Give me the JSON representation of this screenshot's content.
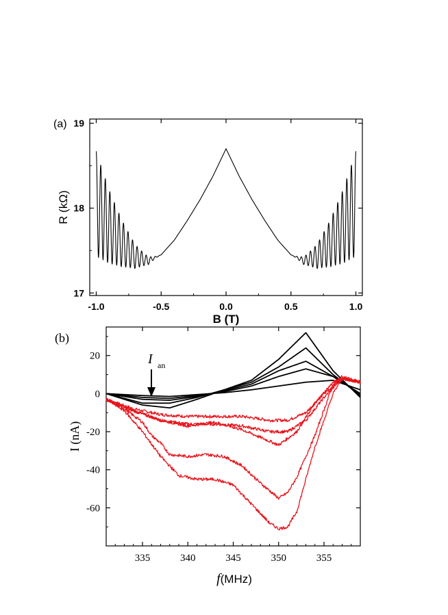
{
  "panel_a": {
    "label": "(a)",
    "xlabel": "B (T)",
    "ylabel": "R  (kΩ)",
    "xticks": [
      "-1.0",
      "-0.5",
      "0.0",
      "0.5",
      "1.0"
    ],
    "yticks": [
      "17",
      "18",
      "19"
    ]
  },
  "panel_b": {
    "label": "(b)",
    "xlabel_italic": "f",
    "xlabel_rest": "(MHz)",
    "ylabel": "I (nA)",
    "annotation_main": "I",
    "annotation_sub": "an",
    "xticks": [
      "335",
      "340",
      "345",
      "350",
      "355"
    ],
    "yticks": [
      "20",
      "0",
      "-20",
      "-40",
      "-60"
    ]
  },
  "colors": {
    "black_series": "#000000",
    "red_series": "#e8141b"
  },
  "chart_data": [
    {
      "type": "line",
      "xlim": [
        -1.05,
        1.05
      ],
      "ylim": [
        16.97,
        19.05
      ],
      "x_ticks": [
        -1.0,
        -0.5,
        0.0,
        0.5,
        1.0
      ],
      "y_ticks": [
        17,
        18,
        19
      ],
      "series": [
        {
          "x": [
            -1.0,
            -0.9,
            -0.8,
            -0.7,
            -0.6,
            -0.5,
            -0.4,
            -0.3,
            -0.2,
            -0.1,
            0.0,
            0.1,
            0.2,
            0.3,
            0.4,
            0.5,
            0.6,
            0.7,
            0.8,
            0.9,
            1.0
          ],
          "y": [
            18.05,
            17.78,
            17.58,
            17.43,
            17.38,
            17.45,
            17.62,
            17.85,
            18.1,
            18.38,
            18.7,
            18.38,
            18.1,
            17.85,
            17.62,
            17.45,
            17.38,
            17.43,
            17.58,
            17.78,
            18.05
          ],
          "oscillation": {
            "start_abs_B": 0.5,
            "amplitude_at_B1": 0.62,
            "period_T": 0.035
          }
        }
      ]
    },
    {
      "type": "line",
      "xlim": [
        331,
        359
      ],
      "ylim": [
        -80,
        35
      ],
      "x_ticks": [
        335,
        340,
        345,
        350,
        355
      ],
      "y_ticks": [
        20,
        0,
        -20,
        -40,
        -60
      ],
      "annotation": {
        "text": "I an",
        "x": 336,
        "arrow_to_y": 1
      },
      "series": [
        {
          "color": "black",
          "x": [
            331,
            335,
            338,
            341,
            344,
            347,
            350,
            353,
            356,
            359
          ],
          "y": [
            0,
            -1,
            -1.5,
            -0.5,
            0.5,
            2,
            4,
            6,
            7,
            2
          ]
        },
        {
          "color": "black",
          "x": [
            331,
            335,
            338,
            341,
            344,
            347,
            350,
            353,
            356,
            359
          ],
          "y": [
            0,
            -2,
            -2.5,
            -1,
            1,
            4,
            9,
            13,
            9,
            0
          ]
        },
        {
          "color": "black",
          "x": [
            331,
            335,
            338,
            341,
            344,
            347,
            350,
            353,
            356,
            359
          ],
          "y": [
            0,
            -3,
            -3.5,
            -1.5,
            1.5,
            5,
            12,
            17,
            9,
            0
          ]
        },
        {
          "color": "black",
          "x": [
            331,
            335,
            338,
            341,
            344,
            347,
            350,
            353,
            356,
            359
          ],
          "y": [
            0,
            -5,
            -5,
            -2,
            2,
            6,
            14,
            24,
            10,
            -1
          ]
        },
        {
          "color": "black",
          "x": [
            331,
            335,
            338,
            341,
            344,
            347,
            350,
            353,
            356,
            359
          ],
          "y": [
            0,
            -6,
            -7.5,
            -3,
            2,
            7,
            18,
            32,
            12,
            -2
          ]
        },
        {
          "color": "red",
          "x": [
            331,
            334,
            337,
            340,
            343,
            346,
            349,
            351,
            353,
            355,
            357,
            359
          ],
          "y": [
            -3,
            -8,
            -11,
            -12,
            -12,
            -12,
            -14,
            -14,
            -10,
            0,
            8,
            6
          ]
        },
        {
          "color": "red",
          "x": [
            331,
            334,
            337,
            340,
            343,
            346,
            349,
            351,
            353,
            355,
            357,
            359
          ],
          "y": [
            -3,
            -9,
            -14,
            -16,
            -16,
            -17,
            -20,
            -20,
            -14,
            -2,
            8,
            6
          ]
        },
        {
          "color": "red",
          "x": [
            331,
            334,
            337,
            340,
            343,
            346,
            349,
            350,
            352,
            354,
            356,
            357,
            359
          ],
          "y": [
            -3,
            -9,
            -14,
            -17,
            -15,
            -19,
            -25,
            -27,
            -20,
            -5,
            6,
            8,
            6
          ]
        },
        {
          "color": "red",
          "x": [
            331,
            333,
            335,
            336,
            337,
            338,
            340,
            342,
            344,
            346,
            348,
            350,
            351,
            352,
            354,
            356,
            357,
            359
          ],
          "y": [
            -3,
            -8,
            -15,
            -22,
            -26,
            -32,
            -33,
            -32,
            -33,
            -38,
            -47,
            -55,
            -52,
            -44,
            -22,
            5,
            9,
            6
          ]
        },
        {
          "color": "red",
          "x": [
            331,
            333,
            335,
            337,
            339,
            341,
            343,
            345,
            347,
            349,
            350,
            351,
            352,
            353,
            354,
            356,
            357,
            359
          ],
          "y": [
            -3,
            -9,
            -20,
            -33,
            -43,
            -45,
            -45,
            -48,
            -58,
            -68,
            -71,
            -70,
            -62,
            -45,
            -28,
            0,
            8,
            6
          ]
        }
      ]
    }
  ]
}
